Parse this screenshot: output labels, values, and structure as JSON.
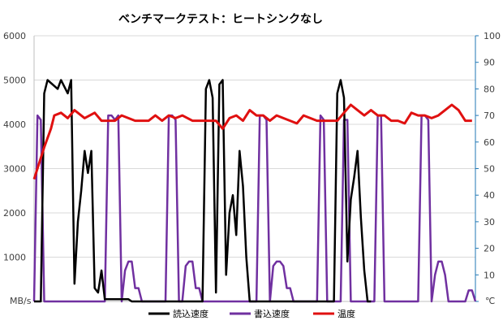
{
  "chart_data": {
    "type": "line",
    "title": "ベンチマークテスト：ヒートシンクなし",
    "ylabel_left_unit": "MB/s",
    "ylabel_right_unit": "℃",
    "ylim_left": [
      0,
      6000
    ],
    "ylim_right": [
      0,
      100
    ],
    "yticks_left": [
      "0",
      "1000",
      "2000",
      "3000",
      "4000",
      "5000",
      "6000"
    ],
    "yticks_right": [
      "0",
      "10",
      "20",
      "30",
      "40",
      "50",
      "60",
      "70",
      "80",
      "90",
      "100"
    ],
    "grid": true,
    "legend_position": "bottom",
    "colors": {
      "read": "#000000",
      "write": "#7030a0",
      "temp": "#e01010",
      "right_axis": "#1f77b4"
    },
    "series": [
      {
        "name": "読込速度",
        "axis": "left",
        "points": [
          [
            0,
            0
          ],
          [
            2,
            0
          ],
          [
            3,
            4700
          ],
          [
            4,
            5000
          ],
          [
            7,
            4800
          ],
          [
            8,
            5000
          ],
          [
            10,
            4700
          ],
          [
            11,
            5000
          ],
          [
            12,
            400
          ],
          [
            13,
            1800
          ],
          [
            14,
            2500
          ],
          [
            15,
            3400
          ],
          [
            16,
            2900
          ],
          [
            17,
            3400
          ],
          [
            18,
            300
          ],
          [
            19,
            200
          ],
          [
            20,
            700
          ],
          [
            21,
            50
          ],
          [
            28,
            50
          ],
          [
            29,
            0
          ],
          [
            50,
            0
          ],
          [
            51,
            4800
          ],
          [
            52,
            5000
          ],
          [
            53,
            4600
          ],
          [
            54,
            200
          ],
          [
            55,
            4900
          ],
          [
            56,
            5000
          ],
          [
            57,
            600
          ],
          [
            58,
            2000
          ],
          [
            59,
            2400
          ],
          [
            60,
            1500
          ],
          [
            61,
            3400
          ],
          [
            62,
            2600
          ],
          [
            63,
            1000
          ],
          [
            64,
            0
          ],
          [
            89,
            0
          ],
          [
            90,
            4700
          ],
          [
            91,
            5000
          ],
          [
            92,
            4600
          ],
          [
            93,
            900
          ],
          [
            94,
            2300
          ],
          [
            95,
            2800
          ],
          [
            96,
            3400
          ],
          [
            97,
            1900
          ],
          [
            98,
            700
          ],
          [
            99,
            0
          ],
          [
            100,
            0
          ]
        ]
      },
      {
        "name": "書込速度",
        "axis": "left",
        "points": [
          [
            0,
            0
          ],
          [
            1,
            4200
          ],
          [
            2,
            4100
          ],
          [
            3,
            0
          ],
          [
            21,
            0
          ],
          [
            22,
            4200
          ],
          [
            23,
            4200
          ],
          [
            24,
            4100
          ],
          [
            25,
            4200
          ],
          [
            26,
            0
          ],
          [
            27,
            700
          ],
          [
            28,
            900
          ],
          [
            29,
            900
          ],
          [
            30,
            300
          ],
          [
            31,
            300
          ],
          [
            32,
            0
          ],
          [
            39,
            0
          ],
          [
            40,
            4200
          ],
          [
            41,
            4200
          ],
          [
            42,
            4100
          ],
          [
            43,
            0
          ],
          [
            44,
            0
          ],
          [
            45,
            800
          ],
          [
            46,
            900
          ],
          [
            47,
            900
          ],
          [
            48,
            300
          ],
          [
            49,
            300
          ],
          [
            50,
            0
          ],
          [
            66,
            0
          ],
          [
            67,
            4200
          ],
          [
            68,
            4200
          ],
          [
            69,
            4100
          ],
          [
            70,
            0
          ],
          [
            71,
            800
          ],
          [
            72,
            900
          ],
          [
            73,
            900
          ],
          [
            74,
            800
          ],
          [
            75,
            300
          ],
          [
            76,
            300
          ],
          [
            77,
            0
          ],
          [
            84,
            0
          ],
          [
            85,
            4200
          ],
          [
            86,
            4100
          ],
          [
            87,
            0
          ],
          [
            91,
            0
          ],
          [
            92,
            4100
          ],
          [
            93,
            4100
          ],
          [
            94,
            0
          ],
          [
            101,
            0
          ],
          [
            102,
            4200
          ],
          [
            103,
            4200
          ],
          [
            104,
            0
          ],
          [
            114,
            0
          ],
          [
            115,
            4200
          ],
          [
            116,
            4200
          ],
          [
            117,
            4100
          ],
          [
            118,
            0
          ],
          [
            119,
            600
          ],
          [
            120,
            900
          ],
          [
            121,
            900
          ],
          [
            122,
            600
          ],
          [
            123,
            0
          ],
          [
            128,
            0
          ],
          [
            129,
            250
          ],
          [
            130,
            250
          ],
          [
            131,
            0
          ]
        ]
      },
      {
        "name": "温度",
        "axis": "right",
        "points": [
          [
            0,
            46
          ],
          [
            3,
            58
          ],
          [
            5,
            65
          ],
          [
            6,
            70
          ],
          [
            8,
            71
          ],
          [
            10,
            69
          ],
          [
            12,
            72
          ],
          [
            15,
            69
          ],
          [
            18,
            71
          ],
          [
            20,
            68
          ],
          [
            24,
            68
          ],
          [
            26,
            70
          ],
          [
            28,
            69
          ],
          [
            30,
            68
          ],
          [
            34,
            68
          ],
          [
            36,
            70
          ],
          [
            38,
            68
          ],
          [
            40,
            70
          ],
          [
            42,
            69
          ],
          [
            44,
            70
          ],
          [
            47,
            68
          ],
          [
            50,
            68
          ],
          [
            54,
            68
          ],
          [
            56,
            65
          ],
          [
            58,
            69
          ],
          [
            60,
            70
          ],
          [
            62,
            68
          ],
          [
            64,
            72
          ],
          [
            66,
            70
          ],
          [
            68,
            70
          ],
          [
            70,
            68
          ],
          [
            72,
            70
          ],
          [
            74,
            69
          ],
          [
            76,
            68
          ],
          [
            78,
            67
          ],
          [
            80,
            70
          ],
          [
            82,
            69
          ],
          [
            84,
            68
          ],
          [
            88,
            68
          ],
          [
            90,
            68
          ],
          [
            92,
            71
          ],
          [
            94,
            74
          ],
          [
            96,
            72
          ],
          [
            98,
            70
          ],
          [
            100,
            72
          ],
          [
            102,
            70
          ],
          [
            104,
            70
          ],
          [
            106,
            68
          ],
          [
            108,
            68
          ],
          [
            110,
            67
          ],
          [
            112,
            71
          ],
          [
            114,
            70
          ],
          [
            116,
            70
          ],
          [
            118,
            69
          ],
          [
            120,
            70
          ],
          [
            122,
            72
          ],
          [
            124,
            74
          ],
          [
            126,
            72
          ],
          [
            128,
            68
          ],
          [
            130,
            68
          ]
        ]
      }
    ]
  }
}
